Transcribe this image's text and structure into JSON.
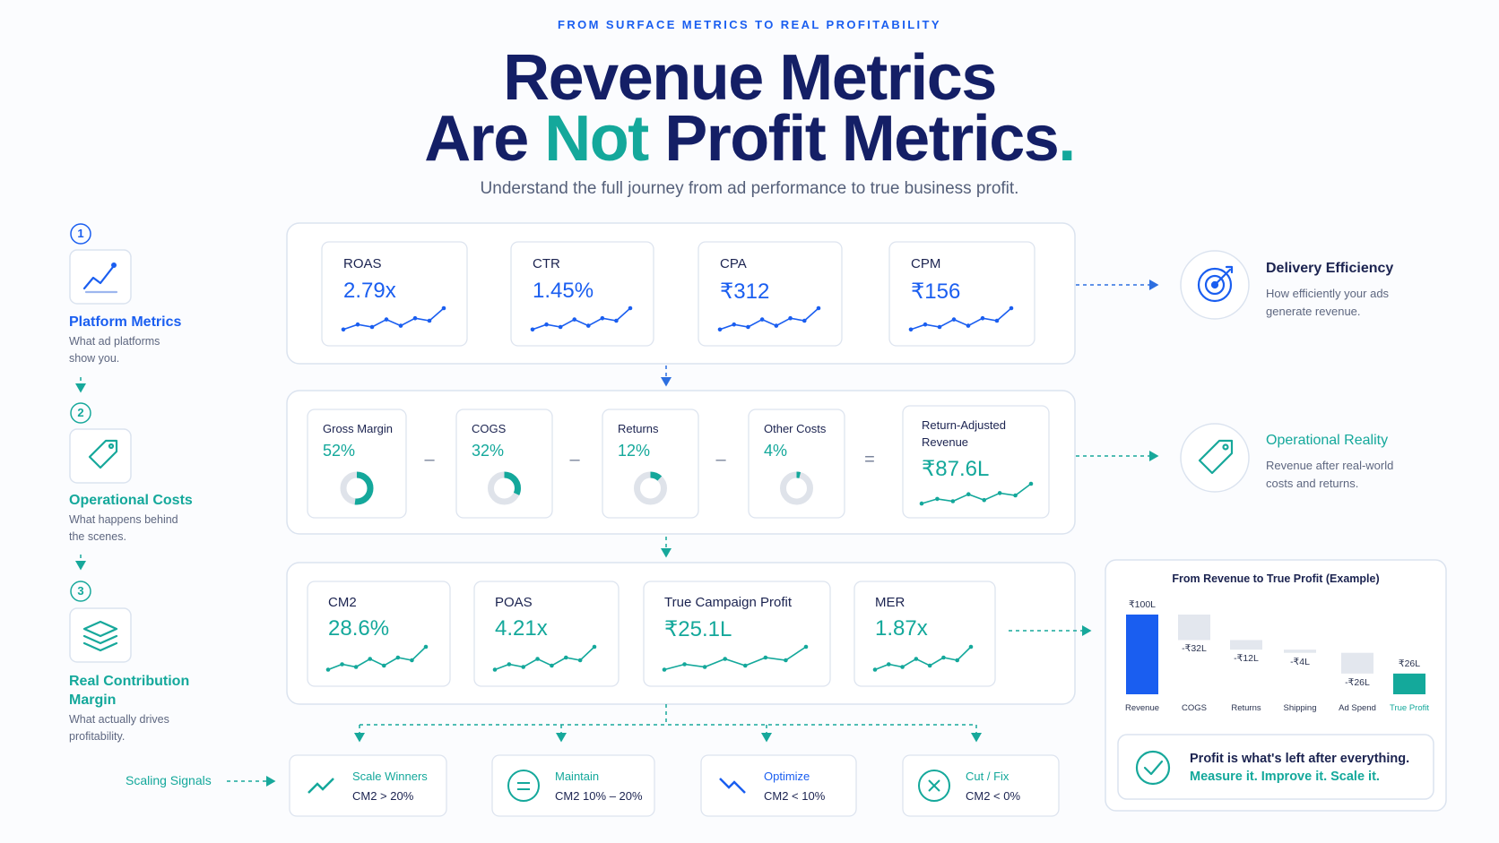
{
  "header": {
    "eyebrow": "FROM SURFACE METRICS TO REAL PROFITABILITY",
    "title_line1": "Revenue Metrics",
    "title_line2": [
      "Are ",
      "Not",
      " Profit Metrics",
      "."
    ],
    "subtitle": "Understand the full journey from ad performance to true business profit."
  },
  "steps": [
    {
      "number": "1",
      "title": "Platform Metrics",
      "description": "What ad platforms show you."
    },
    {
      "number": "2",
      "title": "Operational Costs",
      "description": "What happens behind the scenes."
    },
    {
      "number": "3",
      "title": "Real Contribution Margin",
      "description": "What actually drives profitability."
    }
  ],
  "platform_metrics": [
    {
      "label": "ROAS",
      "value": "2.79x"
    },
    {
      "label": "CTR",
      "value": "1.45%"
    },
    {
      "label": "CPA",
      "value": "₹312"
    },
    {
      "label": "CPM",
      "value": "₹156"
    }
  ],
  "delivery": {
    "title": "Delivery Efficiency",
    "description": "How efficiently your ads generate revenue."
  },
  "operational_costs": [
    {
      "label": "Gross Margin",
      "value": 52,
      "value_label": "52%"
    },
    {
      "label": "COGS",
      "value": 32,
      "value_label": "32%"
    },
    {
      "label": "Returns",
      "value": 12,
      "value_label": "12%"
    },
    {
      "label": "Other Costs",
      "value": 4,
      "value_label": "4%"
    }
  ],
  "operators": [
    "–",
    "–",
    "–",
    "="
  ],
  "return_adjusted": {
    "label_lines": [
      "Return-Adjusted",
      "Revenue"
    ],
    "value": "₹87.6L"
  },
  "operational_reality": {
    "title": "Operational Reality",
    "description": "Revenue after real-world costs and returns."
  },
  "contribution_metrics": [
    {
      "label": "CM2",
      "value": "28.6%"
    },
    {
      "label": "POAS",
      "value": "4.21x"
    },
    {
      "label": "True Campaign Profit",
      "value": "₹25.1L"
    },
    {
      "label": "MER",
      "value": "1.87x"
    }
  ],
  "chart_data": {
    "type": "waterfall",
    "title": "From Revenue to True Profit (Example)",
    "categories": [
      "Revenue",
      "COGS",
      "Returns",
      "Shipping",
      "Ad Spend",
      "True Profit"
    ],
    "values": [
      100,
      -32,
      -12,
      -4,
      -26,
      26
    ],
    "value_labels": [
      "₹100L",
      "-₹32L",
      "-₹12L",
      "-₹4L",
      "-₹26L",
      "₹26L"
    ],
    "colors": [
      "#1a5ef0",
      "#e3e7ee",
      "#e3e7ee",
      "#e3e7ee",
      "#e3e7ee",
      "#14a99b"
    ]
  },
  "profit_note": {
    "line1": "Profit is what's left after everything.",
    "line2": "Measure it. Improve it. Scale it."
  },
  "scaling": {
    "label": "Scaling Signals",
    "signals": [
      {
        "title": "Scale Winners",
        "rule": "CM2 > 20%"
      },
      {
        "title": "Maintain",
        "rule": "CM2 10% – 20%"
      },
      {
        "title": "Optimize",
        "rule": "CM2 < 10%"
      },
      {
        "title": "Cut / Fix",
        "rule": "CM2 < 0%"
      }
    ]
  }
}
